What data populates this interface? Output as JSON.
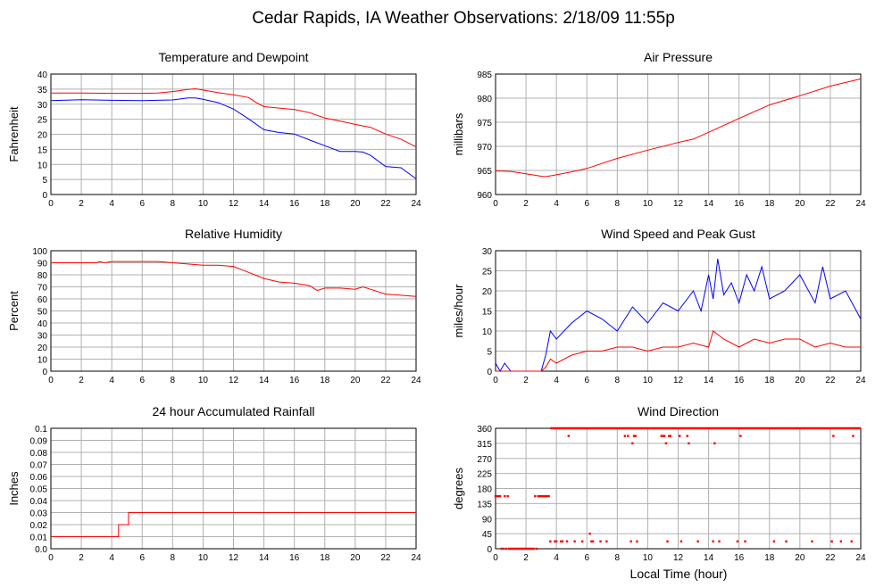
{
  "page": {
    "title": "Cedar Rapids, IA Weather Observations: 2/18/09 11:55p",
    "x_axis_label": "Local Time (hour)"
  },
  "chart_data": [
    {
      "id": "temp",
      "type": "line",
      "title": "Temperature and Dewpoint",
      "ylabel": "Fahrenheit",
      "xlabel": "",
      "xlim": [
        0,
        24
      ],
      "ylim": [
        0,
        40
      ],
      "xticks": [
        0,
        2,
        4,
        6,
        8,
        10,
        12,
        14,
        16,
        18,
        20,
        22,
        24
      ],
      "yticks": [
        0,
        5,
        10,
        15,
        20,
        25,
        30,
        35,
        40
      ],
      "grid": true,
      "series": [
        {
          "color": "#ff0000",
          "x": [
            0,
            2,
            4,
            6,
            7,
            8,
            9,
            9.5,
            10,
            11,
            12,
            13,
            13.5,
            14,
            15,
            16,
            17,
            18,
            19,
            20,
            21,
            22,
            23,
            24
          ],
          "y": [
            33.7,
            33.7,
            33.6,
            33.6,
            33.7,
            34.2,
            34.9,
            35.1,
            34.7,
            33.8,
            33.1,
            32.2,
            30.5,
            29.2,
            28.7,
            28.2,
            27.2,
            25.4,
            24.4,
            23.3,
            22.3,
            20.1,
            18.4,
            15.8
          ]
        },
        {
          "color": "#0000ff",
          "x": [
            0,
            2,
            4,
            6,
            8,
            9,
            9.5,
            10,
            11,
            12,
            13,
            14,
            15,
            16,
            17,
            18,
            19,
            20,
            20.5,
            21,
            22,
            23,
            24
          ],
          "y": [
            31.2,
            31.5,
            31.3,
            31.2,
            31.4,
            32.1,
            32.1,
            31.6,
            30.5,
            28.4,
            25.1,
            21.5,
            20.6,
            20.1,
            18.1,
            16.2,
            14.3,
            14.3,
            14.1,
            13.0,
            9.3,
            8.9,
            5.2
          ]
        }
      ]
    },
    {
      "id": "pressure",
      "type": "line",
      "title": "Air Pressure",
      "ylabel": "millibars",
      "xlabel": "",
      "xlim": [
        0,
        24
      ],
      "ylim": [
        960,
        985
      ],
      "xticks": [
        0,
        2,
        4,
        6,
        8,
        10,
        12,
        14,
        16,
        18,
        20,
        22,
        24
      ],
      "yticks": [
        960,
        965,
        970,
        975,
        980,
        985
      ],
      "grid": true,
      "series": [
        {
          "color": "#ff0000",
          "x": [
            0,
            1,
            2,
            3,
            3.3,
            4,
            5,
            6,
            8,
            10,
            12,
            13,
            14,
            16,
            18,
            20,
            22,
            24
          ],
          "y": [
            964.9,
            964.8,
            964.3,
            963.8,
            963.7,
            964.1,
            964.7,
            965.4,
            967.5,
            969.2,
            970.8,
            971.5,
            972.9,
            975.8,
            978.6,
            980.5,
            982.5,
            984.0
          ]
        }
      ]
    },
    {
      "id": "humidity",
      "type": "line",
      "title": "Relative Humidity",
      "ylabel": "Percent",
      "xlabel": "",
      "xlim": [
        0,
        24
      ],
      "ylim": [
        0,
        100
      ],
      "xticks": [
        0,
        2,
        4,
        6,
        8,
        10,
        12,
        14,
        16,
        18,
        20,
        22,
        24
      ],
      "yticks": [
        0,
        10,
        20,
        30,
        40,
        50,
        60,
        70,
        80,
        90,
        100
      ],
      "grid": true,
      "series": [
        {
          "color": "#ff0000",
          "x": [
            0,
            2,
            3,
            3.2,
            3.5,
            4,
            5,
            6,
            7,
            7.5,
            8,
            9,
            10,
            11,
            12,
            13,
            14,
            15,
            16,
            17,
            17.5,
            18,
            19,
            20,
            20.5,
            21,
            22,
            23,
            24
          ],
          "y": [
            90,
            90,
            90,
            91,
            90,
            91,
            91,
            91,
            91,
            90.5,
            90,
            89,
            88,
            88,
            87,
            82,
            77,
            74,
            73,
            71,
            67,
            69,
            69,
            68,
            70,
            68,
            64,
            63,
            62
          ]
        }
      ]
    },
    {
      "id": "wind",
      "type": "line",
      "title": "Wind Speed and Peak Gust",
      "ylabel": "miles/hour",
      "xlabel": "",
      "xlim": [
        0,
        24
      ],
      "ylim": [
        0,
        30
      ],
      "xticks": [
        0,
        2,
        4,
        6,
        8,
        10,
        12,
        14,
        16,
        18,
        20,
        22,
        24
      ],
      "yticks": [
        0,
        5,
        10,
        15,
        20,
        25,
        30
      ],
      "grid": true,
      "series": [
        {
          "color": "#0000ff",
          "x": [
            0,
            0.3,
            0.6,
            1,
            1.5,
            2,
            2.5,
            3,
            3.3,
            3.6,
            4,
            5,
            6,
            7,
            8,
            9,
            10,
            11,
            12,
            13,
            13.5,
            14,
            14.3,
            14.6,
            15,
            15.5,
            16,
            16.5,
            17,
            17.5,
            18,
            19,
            20,
            21,
            21.5,
            22,
            23,
            24
          ],
          "y": [
            2,
            0,
            2,
            0,
            0,
            0,
            0,
            0,
            4,
            10,
            8,
            12,
            15,
            13,
            10,
            16,
            12,
            17,
            15,
            20,
            15,
            24,
            18,
            28,
            19,
            22,
            17,
            24,
            20,
            26,
            18,
            20,
            24,
            17,
            26,
            18,
            20,
            13
          ]
        },
        {
          "color": "#ff0000",
          "x": [
            0,
            3,
            3.3,
            3.6,
            4,
            5,
            6,
            7,
            8,
            9,
            10,
            11,
            12,
            13,
            14,
            14.3,
            15,
            16,
            17,
            18,
            19,
            20,
            21,
            22,
            23,
            24
          ],
          "y": [
            0,
            0,
            1,
            3,
            2,
            4,
            5,
            5,
            6,
            6,
            5,
            6,
            6,
            7,
            6,
            10,
            8,
            6,
            8,
            7,
            8,
            8,
            6,
            7,
            6,
            6
          ]
        }
      ]
    },
    {
      "id": "rain",
      "type": "line",
      "title": "24 hour Accumulated Rainfall",
      "ylabel": "Inches",
      "xlabel": "",
      "xlim": [
        0,
        24
      ],
      "ylim": [
        0,
        0.1
      ],
      "xticks": [
        0,
        2,
        4,
        6,
        8,
        10,
        12,
        14,
        16,
        18,
        20,
        22,
        24
      ],
      "yticks": [
        0,
        0.01,
        0.02,
        0.03,
        0.04,
        0.05,
        0.06,
        0.07,
        0.08,
        0.09,
        0.1
      ],
      "ytick_labels": [
        "0.0",
        "0.01",
        "0.02",
        "0.03",
        "0.04",
        "0.05",
        "0.06",
        "0.07",
        "0.08",
        "0.09",
        "0.1"
      ],
      "grid": true,
      "series": [
        {
          "color": "#ff0000",
          "x": [
            0,
            4.45,
            4.45,
            5.1,
            5.1,
            24
          ],
          "y": [
            0.01,
            0.01,
            0.02,
            0.02,
            0.03,
            0.03
          ]
        }
      ]
    },
    {
      "id": "direction",
      "type": "scatter",
      "title": "Wind Direction",
      "ylabel": "degrees",
      "xlabel": "Local Time (hour)",
      "xlim": [
        0,
        24
      ],
      "ylim": [
        0,
        360
      ],
      "xticks": [
        0,
        2,
        4,
        6,
        8,
        10,
        12,
        14,
        16,
        18,
        20,
        22,
        24
      ],
      "yticks": [
        0,
        45,
        90,
        135,
        180,
        225,
        270,
        315,
        360
      ],
      "grid": true,
      "series": [
        {
          "color": "#ff0000",
          "x": [
            0,
            0.1,
            0.2,
            0.3,
            0.4,
            0.5,
            0.6,
            0.7,
            0.8,
            0.9,
            1.0,
            1.1,
            1.2,
            1.3,
            1.4,
            1.5,
            1.6,
            1.7,
            1.8,
            1.9,
            2.0,
            2.1,
            2.2,
            2.3,
            2.4,
            2.5,
            2.6,
            2.7,
            2.8,
            2.9,
            3.0,
            3.1,
            3.2,
            3.3,
            3.4,
            3.5,
            3.6,
            3.9,
            4.0,
            4.3,
            4.4,
            4.7,
            4.8,
            5.2,
            5.7,
            6.2,
            6.3,
            6.4,
            6.9,
            7.3,
            8.5,
            8.7,
            8.9,
            9.0,
            9.1,
            9.2,
            9.3,
            10.9,
            11.0,
            11.1,
            11.2,
            11.3,
            11.4,
            11.5,
            12.1,
            12.2,
            12.6,
            12.7,
            13.3,
            14.3,
            14.4,
            14.7,
            15.9,
            16.1,
            16.4,
            18.3,
            19.1,
            20.8,
            22.1,
            22.2,
            22.7,
            23.4,
            23.5
          ],
          "y": [
            157,
            157,
            157,
            157,
            0,
            0,
            157,
            0,
            157,
            0,
            0,
            0,
            0,
            0,
            0,
            0,
            0,
            0,
            0,
            0,
            0,
            0,
            0,
            0,
            0,
            0,
            157,
            0,
            157,
            157,
            157,
            157,
            157,
            157,
            157,
            157,
            22,
            22,
            22,
            22,
            22,
            22,
            337,
            22,
            22,
            45,
            22,
            22,
            22,
            22,
            337,
            337,
            22,
            315,
            337,
            337,
            22,
            337,
            337,
            337,
            315,
            22,
            337,
            337,
            337,
            22,
            337,
            315,
            22,
            22,
            315,
            22,
            22,
            337,
            22,
            22,
            22,
            22,
            22,
            337,
            22,
            22,
            337
          ]
        },
        {
          "color": "#ff0000",
          "x": [
            3.6,
            24
          ],
          "y": [
            360,
            360
          ],
          "line": true
        }
      ]
    }
  ]
}
